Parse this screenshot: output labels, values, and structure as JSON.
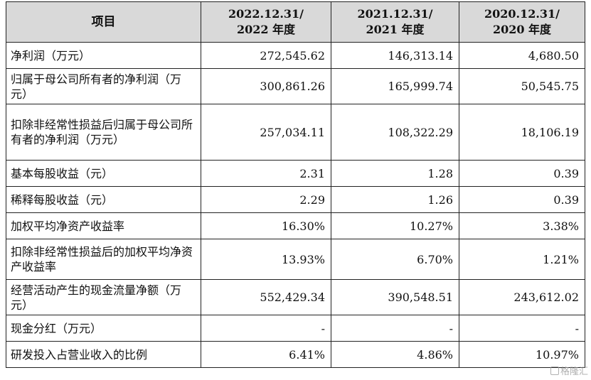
{
  "table": {
    "headers": {
      "item": "项目",
      "col1_line1": "2022.12.31/",
      "col1_line2": "2022 年度",
      "col2_line1": "2021.12.31/",
      "col2_line2": "2021 年度",
      "col3_line1": "2020.12.31/",
      "col3_line2": "2020 年度"
    },
    "rows": [
      {
        "label": "净利润（万元）",
        "v2022": "272,545.62",
        "v2021": "146,313.14",
        "v2020": "4,680.50"
      },
      {
        "label": "归属于母公司所有者的净利润（万元）",
        "v2022": "300,861.26",
        "v2021": "165,999.74",
        "v2020": "50,545.75"
      },
      {
        "label": "扣除非经常性损益后归属于母公司所有者的净利润（万元）",
        "v2022": "257,034.11",
        "v2021": "108,322.29",
        "v2020": "18,106.19"
      },
      {
        "label": "基本每股收益（元）",
        "v2022": "2.31",
        "v2021": "1.28",
        "v2020": "0.39"
      },
      {
        "label": "稀释每股收益（元）",
        "v2022": "2.29",
        "v2021": "1.26",
        "v2020": "0.39"
      },
      {
        "label": "加权平均净资产收益率",
        "v2022": "16.30%",
        "v2021": "10.27%",
        "v2020": "3.38%"
      },
      {
        "label": "扣除非经常性损益后的加权平均净资产收益率",
        "v2022": "13.93%",
        "v2021": "6.70%",
        "v2020": "1.21%"
      },
      {
        "label": "经营活动产生的现金流量净额（万元）",
        "v2022": "552,429.34",
        "v2021": "390,548.51",
        "v2020": "243,612.02"
      },
      {
        "label": "现金分红（万元）",
        "v2022": "-",
        "v2021": "-",
        "v2020": "-"
      },
      {
        "label": "研发投入占营业收入的比例",
        "v2022": "6.41%",
        "v2021": "4.86%",
        "v2020": "10.97%"
      }
    ]
  },
  "watermark": {
    "text": "格隆汇"
  }
}
